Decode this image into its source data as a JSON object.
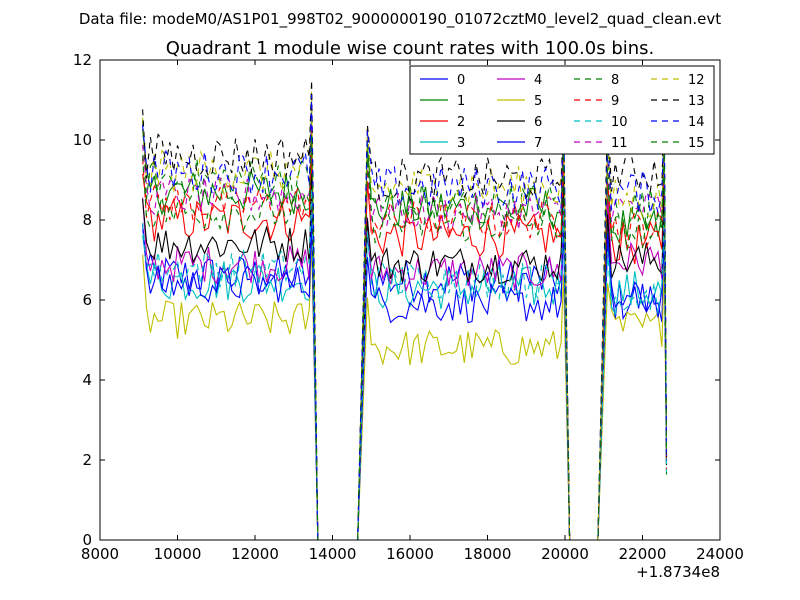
{
  "suptitle": "Data file: modeM0/AS1P01_998T02_9000000190_01072cztM0_level2_quad_clean.evt",
  "chart_data": {
    "type": "line",
    "title": "Quadrant 1 module wise count rates with 100.0s bins.",
    "xlabel": "",
    "ylabel": "",
    "x_offset_label": "+1.8734e8",
    "xlim": [
      8000,
      24000
    ],
    "ylim": [
      0,
      12
    ],
    "xticks": [
      8000,
      10000,
      12000,
      14000,
      16000,
      18000,
      20000,
      22000,
      24000
    ],
    "yticks": [
      0,
      2,
      4,
      6,
      8,
      10,
      12
    ],
    "grid": false,
    "legend_position": "top-right",
    "segments": [
      {
        "start": 9100,
        "end": 13400
      },
      {
        "start": 14900,
        "end": 19900
      },
      {
        "start": 21100,
        "end": 22500
      }
    ],
    "series": [
      {
        "name": "0",
        "color": "#0000ff",
        "dashed": false,
        "base": 6.0,
        "noise": 0.35,
        "values_summary": [
          6.0,
          6.6,
          6.5,
          6.0
        ]
      },
      {
        "name": "1",
        "color": "#008000",
        "dashed": false,
        "base": 8.0,
        "noise": 0.35,
        "values_summary": [
          8.0,
          8.7,
          8.3,
          7.8
        ]
      },
      {
        "name": "2",
        "color": "#ff0000",
        "dashed": false,
        "base": 7.3,
        "noise": 0.35,
        "values_summary": [
          7.3,
          8.0,
          7.6,
          7.4
        ]
      },
      {
        "name": "3",
        "color": "#00bfbf",
        "dashed": false,
        "base": 6.7,
        "noise": 0.35,
        "values_summary": [
          6.7,
          6.5,
          6.3,
          6.2
        ]
      },
      {
        "name": "4",
        "color": "#bf00bf",
        "dashed": false,
        "base": 6.3,
        "noise": 0.3,
        "values_summary": [
          6.3,
          6.9,
          6.7,
          7.0
        ]
      },
      {
        "name": "5",
        "color": "#bfbf00",
        "dashed": false,
        "base": 5.0,
        "noise": 0.3,
        "values_summary": [
          5.0,
          5.5,
          4.8,
          5.3
        ]
      },
      {
        "name": "6",
        "color": "#000000",
        "dashed": false,
        "base": 6.9,
        "noise": 0.3,
        "values_summary": [
          6.9,
          7.4,
          6.9,
          7.0
        ]
      },
      {
        "name": "7",
        "color": "#0000ff",
        "dashed": false,
        "base": 6.1,
        "noise": 0.3,
        "values_summary": [
          6.1,
          6.4,
          5.9,
          6.0
        ]
      },
      {
        "name": "8",
        "color": "#008000",
        "dashed": true,
        "base": 8.3,
        "noise": 0.35,
        "values_summary": [
          8.3,
          9.0,
          8.4,
          8.3
        ]
      },
      {
        "name": "9",
        "color": "#ff0000",
        "dashed": true,
        "base": 7.8,
        "noise": 0.3,
        "values_summary": [
          7.8,
          8.4,
          8.0,
          7.8
        ]
      },
      {
        "name": "10",
        "color": "#00bfbf",
        "dashed": true,
        "base": 6.4,
        "noise": 0.3,
        "values_summary": [
          6.4,
          6.8,
          6.5,
          6.1
        ]
      },
      {
        "name": "11",
        "color": "#bf00bf",
        "dashed": true,
        "base": 8.0,
        "noise": 0.3,
        "values_summary": [
          8.0,
          8.6,
          8.2,
          8.3
        ]
      },
      {
        "name": "12",
        "color": "#bfbf00",
        "dashed": true,
        "base": 8.6,
        "noise": 0.35,
        "values_summary": [
          8.6,
          9.2,
          8.8,
          8.5
        ]
      },
      {
        "name": "13",
        "color": "#000000",
        "dashed": true,
        "base": 9.2,
        "noise": 0.35,
        "values_summary": [
          9.2,
          9.6,
          9.0,
          9.2
        ]
      },
      {
        "name": "14",
        "color": "#0000ff",
        "dashed": true,
        "base": 8.7,
        "noise": 0.35,
        "values_summary": [
          8.7,
          9.2,
          8.8,
          8.7
        ]
      },
      {
        "name": "15",
        "color": "#008000",
        "dashed": true,
        "base": 7.6,
        "noise": 0.3,
        "values_summary": [
          7.6,
          8.2,
          7.9,
          7.7
        ]
      }
    ]
  }
}
